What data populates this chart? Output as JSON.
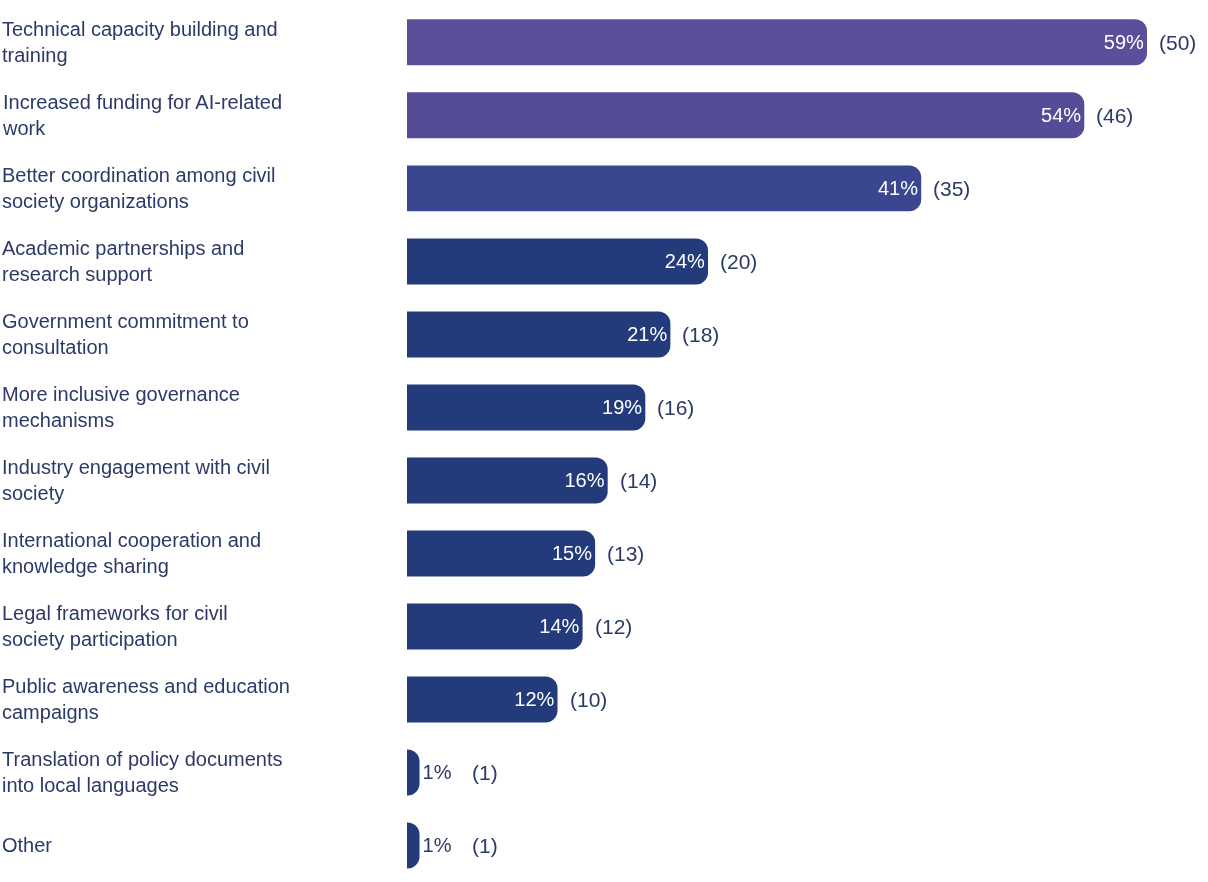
{
  "chart_data": {
    "type": "bar",
    "orientation": "horizontal",
    "categories": [
      "Technical capacity building and training",
      "Increased funding for AI-related work",
      "Better coordination among civil society organizations",
      "Academic partnerships and research support",
      "Government commitment to consultation",
      "More inclusive governance mechanisms",
      "Industry engagement with civil society",
      "International cooperation and knowledge sharing",
      "Legal frameworks for civil society participation",
      "Public awareness and education campaigns",
      "Translation of policy documents into local languages",
      "Other"
    ],
    "values": [
      59,
      54,
      41,
      24,
      21,
      19,
      16,
      15,
      14,
      12,
      1,
      1
    ],
    "value_labels": [
      "59%",
      "54%",
      "41%",
      "24%",
      "21%",
      "19%",
      "16%",
      "15%",
      "14%",
      "12%",
      "1%",
      "1%"
    ],
    "colors": [
      "#5a4f9a",
      "#554c98",
      "#3a4690",
      "#233b7a",
      "#233b7a",
      "#233b7a",
      "#233b7a",
      "#233b7a",
      "#233b7a",
      "#233b7a",
      "#233b7a",
      "#233b7a"
    ],
    "annotations": [
      {
        "text": "(50)",
        "x": 59,
        "y": "Technical capacity building and training"
      },
      {
        "text": "(46)",
        "x": 54,
        "y": "Increased funding for AI-related work"
      },
      {
        "text": "(35)",
        "x": 41,
        "y": "Better coordination among civil society organizations"
      },
      {
        "text": "(20)",
        "x": 24,
        "y": "Academic partnerships and research support"
      },
      {
        "text": "(18)",
        "x": 21,
        "y": "Government commitment to consultation"
      },
      {
        "text": "(16)",
        "x": 19,
        "y": "More inclusive governance mechanisms"
      },
      {
        "text": "(14)",
        "x": 16,
        "y": "Industry engagement with civil society"
      },
      {
        "text": "(13)",
        "x": 15,
        "y": "International cooperation and knowledge sharing"
      },
      {
        "text": "(12)",
        "x": 14,
        "y": "Legal frameworks for civil society participation"
      },
      {
        "text": "(10)",
        "x": 12,
        "y": "Public awareness and education campaigns"
      },
      {
        "text": "(1)",
        "x": 1,
        "y": "Translation of policy documents into local languages"
      },
      {
        "text": "(1)",
        "x": 1,
        "y": "Other"
      }
    ],
    "legend": false
  }
}
